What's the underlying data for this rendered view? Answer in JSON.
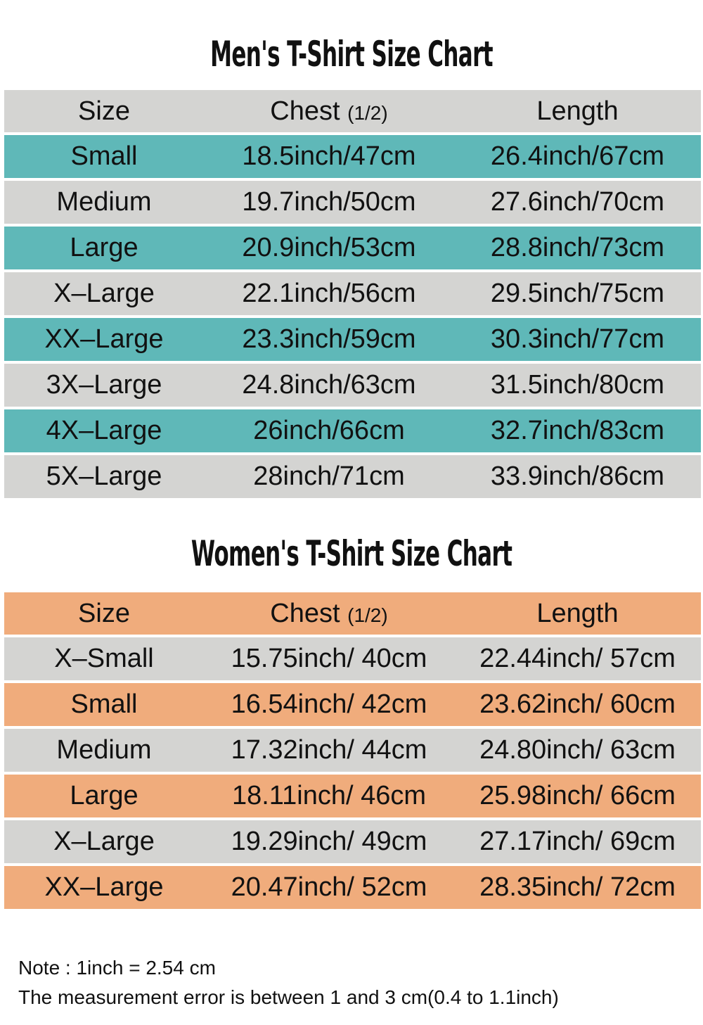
{
  "colors": {
    "gray": "#d4d4d2",
    "teal": "#5fb8b8",
    "orange": "#f0ac7c"
  },
  "mens": {
    "title": "Men's T-Shirt Size Chart",
    "headers": {
      "size": "Size",
      "chest": "Chest",
      "chest_note": "(1/2)",
      "length": "Length"
    },
    "rows": [
      [
        "Small",
        "18.5inch/47cm",
        "26.4inch/67cm"
      ],
      [
        "Medium",
        "19.7inch/50cm",
        "27.6inch/70cm"
      ],
      [
        "Large",
        "20.9inch/53cm",
        "28.8inch/73cm"
      ],
      [
        "X–Large",
        "22.1inch/56cm",
        "29.5inch/75cm"
      ],
      [
        "XX–Large",
        "23.3inch/59cm",
        "30.3inch/77cm"
      ],
      [
        "3X–Large",
        "24.8inch/63cm",
        "31.5inch/80cm"
      ],
      [
        "4X–Large",
        "26inch/66cm",
        "32.7inch/83cm"
      ],
      [
        "5X–Large",
        "28inch/71cm",
        "33.9inch/86cm"
      ]
    ]
  },
  "womens": {
    "title": "Women's T-Shirt Size Chart",
    "headers": {
      "size": "Size",
      "chest": "Chest",
      "chest_note": "(1/2)",
      "length": "Length"
    },
    "rows": [
      [
        "X–Small",
        "15.75inch/ 40cm",
        "22.44inch/ 57cm"
      ],
      [
        "Small",
        "16.54inch/ 42cm",
        "23.62inch/ 60cm"
      ],
      [
        "Medium",
        "17.32inch/ 44cm",
        "24.80inch/ 63cm"
      ],
      [
        "Large",
        "18.11inch/ 46cm",
        "25.98inch/ 66cm"
      ],
      [
        "X–Large",
        "19.29inch/ 49cm",
        "27.17inch/ 69cm"
      ],
      [
        "XX–Large",
        "20.47inch/ 52cm",
        "28.35inch/ 72cm"
      ]
    ]
  },
  "notes": {
    "line1": "Note : 1inch = 2.54 cm",
    "line2": "The measurement error is between 1 and 3 cm(0.4 to 1.1inch)"
  }
}
